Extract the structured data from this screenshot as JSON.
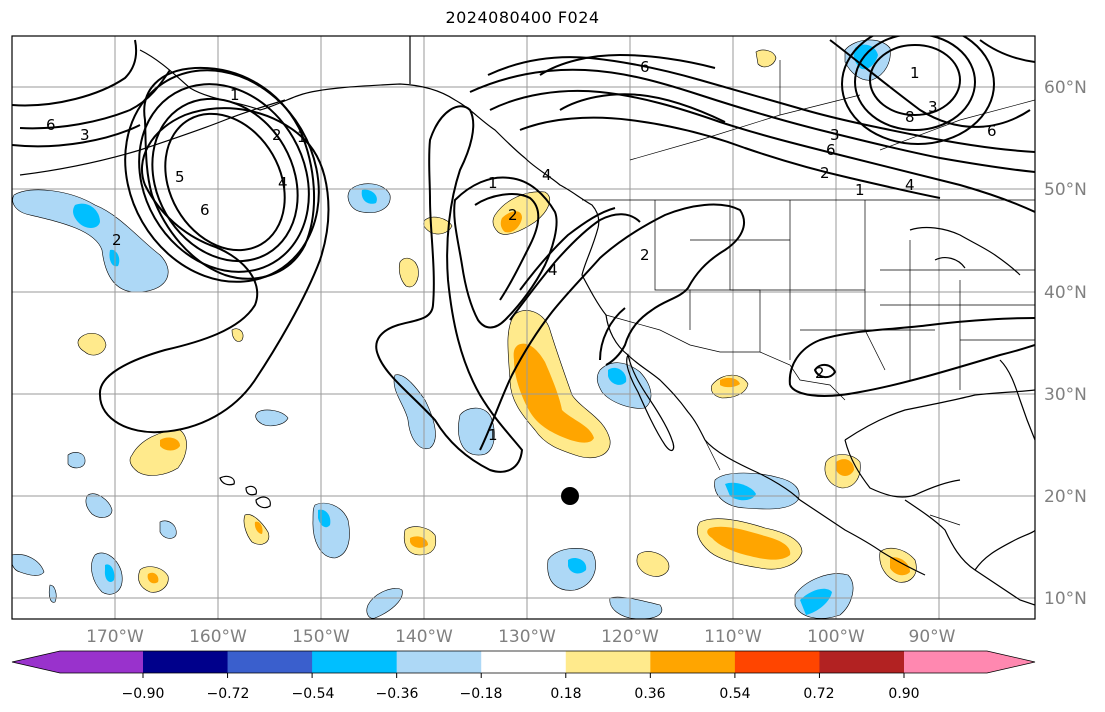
{
  "title": "2024080400 F024",
  "lon_labels": [
    "170°W",
    "160°W",
    "150°W",
    "140°W",
    "130°W",
    "120°W",
    "110°W",
    "100°W",
    "90°W"
  ],
  "lat_labels": [
    "60°N",
    "50°N",
    "40°N",
    "30°N",
    "20°N",
    "10°N"
  ],
  "colorbar": {
    "ticks": [
      "−0.90",
      "−0.72",
      "−0.54",
      "−0.36",
      "−0.18",
      "0.18",
      "0.36",
      "0.54",
      "0.72",
      "0.90"
    ],
    "colors": [
      "#9932cc",
      "#00008b",
      "#3a5fcd",
      "#00bfff",
      "#add8f6",
      "#ffffff",
      "#ffea8c",
      "#ffa500",
      "#ff4500",
      "#b22222",
      "#ff88b0"
    ]
  },
  "contour_labels": [
    "6",
    "3",
    "2",
    "1",
    "1",
    "5",
    "6",
    "4",
    "1",
    "2",
    "6",
    "4",
    "2",
    "1",
    "4",
    "6",
    "3",
    "8",
    "3",
    "6",
    "1",
    "4",
    "2",
    "2",
    "2",
    "1"
  ],
  "marker": "black-dot"
}
